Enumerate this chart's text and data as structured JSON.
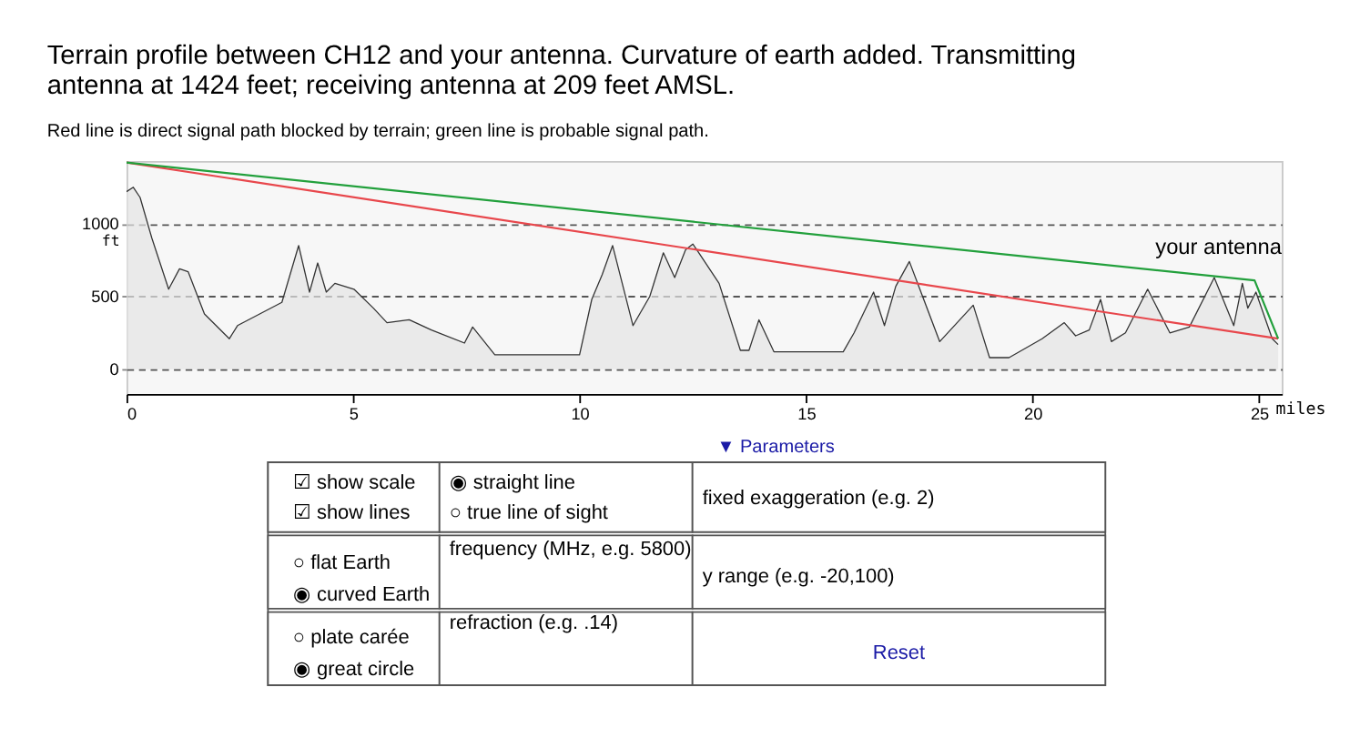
{
  "chart_data": {
    "type": "area",
    "title": "Terrain profile between CH12 and your antenna. Curvature of earth added. Transmitting antenna at 1424 feet; receiving antenna at 209 feet AMSL.",
    "subtitle": "Red line is direct signal path blocked by terrain; green line is probable signal path.",
    "ylabel": "ft",
    "xlabel": "miles",
    "xlim": [
      0,
      25.5
    ],
    "xticks": [
      0,
      5,
      10,
      15,
      20,
      {
        "value": 25,
        "label": "25"
      }
    ],
    "ylim": [
      -170,
      1430
    ],
    "yticks": [
      0,
      500,
      1000
    ],
    "grid": "y",
    "marker": "none",
    "line_style": "solid",
    "series": [
      {
        "color": "#333333",
        "x": [
          0,
          0.15,
          0.3,
          0.56,
          0.93,
          1.17,
          1.36,
          1.72,
          2.27,
          2.45,
          2.94,
          3.43,
          3.8,
          4.04,
          4.22,
          4.41,
          4.6,
          5.02,
          5.45,
          5.75,
          6.24,
          6.73,
          7.46,
          7.64,
          8.13,
          10.0,
          10.27,
          10.5,
          10.73,
          11.18,
          11.55,
          11.85,
          12.1,
          12.34,
          12.5,
          12.59,
          13.08,
          13.55,
          13.74,
          13.96,
          14.29,
          15.82,
          16.06,
          16.49,
          16.73,
          16.98,
          17.28,
          17.95,
          18.69,
          19.05,
          19.48,
          20.21,
          20.7,
          20.95,
          21.25,
          21.5,
          21.74,
          22.05,
          22.54,
          23.03,
          23.46,
          24.01,
          24.44,
          24.63,
          24.75,
          24.93,
          25.29,
          25.42
        ],
        "values": [
          1220,
          1250,
          1180,
          900,
          550,
          690,
          670,
          380,
          210,
          300,
          380,
          460,
          850,
          530,
          730,
          530,
          590,
          550,
          420,
          320,
          340,
          270,
          180,
          290,
          100,
          100,
          480,
          650,
          850,
          300,
          500,
          800,
          630,
          820,
          860,
          820,
          590,
          130,
          130,
          340,
          120,
          120,
          250,
          530,
          300,
          570,
          740,
          190,
          440,
          80,
          80,
          210,
          320,
          230,
          270,
          480,
          190,
          250,
          550,
          250,
          290,
          630,
          300,
          590,
          420,
          530,
          210,
          170
        ]
      },
      {
        "type": "line",
        "color": "#e8474c",
        "x": [
          0,
          25.42
        ],
        "values": [
          1420,
          210
        ]
      },
      {
        "type": "line",
        "color": "#22a03c",
        "x": [
          0,
          24.9,
          25.42
        ],
        "values": [
          1420,
          610,
          210
        ]
      }
    ],
    "annotations": [
      "your antenna",
      "▼ Parameters",
      "☑ show scale",
      "☑ show lines",
      "◉ straight line",
      "○ true line of sight",
      "fixed exaggeration (e.g. 2)",
      "○ flat Earth",
      "◉ curved Earth",
      "frequency (MHz, e.g. 5800)",
      "y range (e.g. -20,100)",
      "○ plate carée",
      "◉ great circle",
      "refraction (e.g. .14)",
      "Reset"
    ]
  }
}
